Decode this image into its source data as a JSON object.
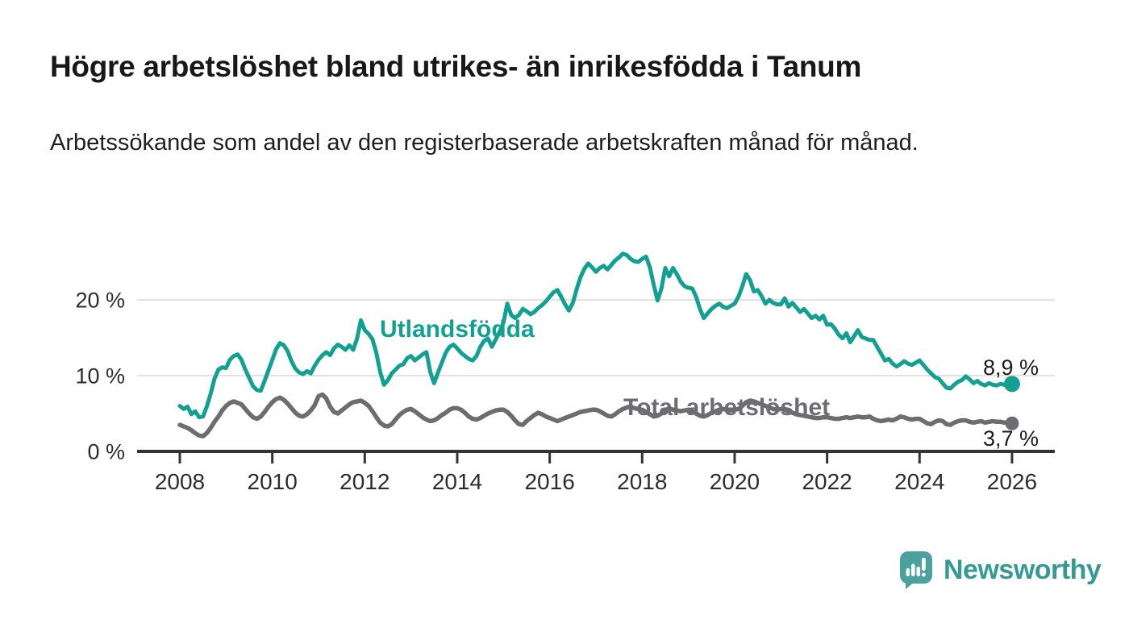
{
  "header": {
    "title": "Högre arbetslöshet bland utrikes- än inrikesfödda i Tanum",
    "subtitle": "Arbetssökande som andel av den registerbaserade arbetskraften månad för månad."
  },
  "branding": {
    "wordmark": "Newsworthy",
    "logo_icon": "newsworthy-speech-bubble-bar-chart-icon",
    "brand_color": "#359A94",
    "icon_color": "#4AA19E"
  },
  "chart_data": {
    "type": "line",
    "frequency": "monthly",
    "x_start_year": 2008,
    "x_end_year": 2026,
    "xlabel": "",
    "ylabel": "",
    "ylim": [
      0,
      27.5
    ],
    "grid": "horizontal",
    "legend_position": "inline-labels",
    "style": {
      "grid_color": "#d9d9d9",
      "axis_color": "#333333",
      "tick_label_color": "#2d2d2d"
    },
    "y_ticks": [
      {
        "value": 0,
        "label": "0 %"
      },
      {
        "value": 10,
        "label": "10 %"
      },
      {
        "value": 20,
        "label": "20 %"
      }
    ],
    "x_ticks": [
      {
        "year": 2008,
        "label": "2008"
      },
      {
        "year": 2010,
        "label": "2010"
      },
      {
        "year": 2012,
        "label": "2012"
      },
      {
        "year": 2014,
        "label": "2014"
      },
      {
        "year": 2016,
        "label": "2016"
      },
      {
        "year": 2018,
        "label": "2018"
      },
      {
        "year": 2020,
        "label": "2020"
      },
      {
        "year": 2022,
        "label": "2022"
      },
      {
        "year": 2024,
        "label": "2024"
      },
      {
        "year": 2026,
        "label": "2026"
      }
    ],
    "series": [
      {
        "id": "utlandsfodda",
        "name": "Utlandsfödda",
        "color": "#12A092",
        "end_label": "8,9 %",
        "end_value": 8.9,
        "values": [
          6.0,
          5.6,
          5.9,
          4.9,
          5.3,
          4.5,
          4.6,
          5.9,
          7.6,
          9.6,
          10.8,
          11.1,
          11.0,
          12.1,
          12.6,
          12.8,
          12.1,
          10.8,
          9.7,
          8.6,
          8.1,
          8.0,
          9.3,
          10.7,
          12.1,
          13.5,
          14.3,
          14.0,
          13.2,
          11.9,
          10.9,
          10.4,
          10.2,
          10.6,
          10.3,
          11.3,
          12.1,
          12.7,
          13.1,
          12.7,
          13.6,
          14.1,
          13.8,
          13.4,
          14.0,
          13.4,
          14.9,
          17.3,
          16.0,
          15.5,
          14.8,
          13.0,
          10.5,
          8.8,
          9.4,
          10.3,
          10.8,
          11.3,
          11.5,
          12.3,
          12.6,
          12.0,
          12.4,
          12.8,
          13.1,
          10.5,
          9.0,
          10.4,
          11.7,
          13.0,
          13.8,
          14.1,
          13.6,
          13.0,
          12.6,
          12.2,
          12.0,
          12.6,
          13.8,
          14.6,
          14.9,
          13.8,
          14.8,
          15.8,
          17.0,
          19.5,
          18.0,
          17.6,
          18.0,
          18.8,
          18.5,
          18.1,
          18.4,
          18.9,
          19.3,
          19.8,
          20.4,
          21.0,
          21.3,
          20.4,
          19.4,
          18.6,
          19.6,
          21.4,
          23.0,
          24.1,
          24.8,
          24.3,
          23.7,
          24.2,
          24.5,
          24.0,
          24.6,
          25.2,
          25.6,
          26.1,
          25.9,
          25.4,
          25.1,
          25.0,
          25.4,
          25.7,
          24.3,
          22.0,
          19.9,
          21.5,
          24.2,
          23.1,
          24.2,
          23.4,
          22.4,
          21.8,
          21.6,
          21.5,
          20.4,
          18.8,
          17.6,
          18.2,
          18.8,
          19.2,
          19.5,
          19.1,
          18.9,
          19.2,
          19.5,
          20.4,
          21.8,
          23.4,
          22.6,
          21.1,
          21.3,
          20.5,
          19.5,
          20.0,
          19.6,
          19.4,
          19.4,
          20.2,
          19.1,
          19.6,
          19.0,
          18.4,
          18.8,
          18.2,
          17.6,
          17.9,
          17.4,
          17.9,
          16.7,
          16.8,
          16.2,
          15.4,
          14.9,
          15.6,
          14.4,
          15.2,
          16.0,
          15.1,
          14.9,
          14.7,
          14.7,
          13.8,
          12.9,
          12.0,
          12.2,
          11.6,
          11.2,
          11.5,
          11.9,
          11.6,
          11.4,
          11.7,
          12.0,
          11.4,
          10.8,
          10.3,
          9.8,
          9.6,
          9.0,
          8.4,
          8.3,
          8.8,
          9.2,
          9.4,
          9.9,
          9.5,
          9.0,
          9.3,
          8.9,
          8.7,
          9.0,
          8.8,
          8.7,
          8.9,
          8.8,
          8.8,
          8.9
        ]
      },
      {
        "id": "total",
        "name": "Total arbetslöshet",
        "color": "#6C6C71",
        "end_label": "3,7 %",
        "end_value": 3.7,
        "values": [
          3.5,
          3.3,
          3.1,
          2.8,
          2.4,
          2.1,
          2.0,
          2.4,
          3.1,
          3.9,
          4.6,
          5.4,
          6.0,
          6.4,
          6.6,
          6.4,
          6.2,
          5.6,
          5.0,
          4.5,
          4.3,
          4.6,
          5.2,
          5.9,
          6.5,
          6.9,
          7.1,
          6.8,
          6.3,
          5.7,
          5.1,
          4.7,
          4.6,
          4.9,
          5.4,
          6.1,
          7.3,
          7.5,
          7.0,
          5.9,
          5.2,
          5.0,
          5.4,
          5.8,
          6.2,
          6.5,
          6.6,
          6.7,
          6.4,
          6.0,
          5.3,
          4.5,
          3.8,
          3.4,
          3.3,
          3.6,
          4.2,
          4.8,
          5.2,
          5.5,
          5.6,
          5.3,
          4.9,
          4.5,
          4.2,
          4.0,
          4.1,
          4.4,
          4.8,
          5.1,
          5.5,
          5.7,
          5.7,
          5.5,
          5.1,
          4.6,
          4.3,
          4.2,
          4.4,
          4.7,
          5.0,
          5.2,
          5.4,
          5.5,
          5.5,
          5.2,
          4.7,
          4.1,
          3.6,
          3.5,
          4.0,
          4.4,
          4.8,
          5.1,
          4.9,
          4.6,
          4.4,
          4.2,
          4.0,
          4.2,
          4.4,
          4.6,
          4.8,
          5.0,
          5.2,
          5.3,
          5.4,
          5.5,
          5.5,
          5.3,
          5.0,
          4.7,
          4.6,
          4.9,
          5.3,
          5.6,
          5.8,
          5.9,
          5.7,
          5.6,
          5.5,
          5.2,
          4.9,
          4.6,
          4.7,
          5.0,
          5.4,
          5.7,
          5.5,
          5.4,
          5.3,
          5.4,
          5.5,
          5.3,
          5.0,
          4.7,
          4.6,
          4.8,
          5.1,
          5.3,
          5.5,
          5.6,
          5.5,
          5.4,
          5.5,
          5.6,
          6.0,
          6.5,
          6.7,
          6.6,
          6.4,
          6.2,
          6.0,
          5.8,
          5.6,
          5.5,
          5.6,
          5.5,
          5.3,
          5.1,
          4.9,
          4.8,
          4.7,
          4.6,
          4.5,
          4.4,
          4.4,
          4.5,
          4.5,
          4.4,
          4.3,
          4.3,
          4.4,
          4.5,
          4.4,
          4.5,
          4.6,
          4.5,
          4.5,
          4.6,
          4.3,
          4.1,
          4.0,
          4.1,
          4.2,
          4.1,
          4.3,
          4.6,
          4.5,
          4.3,
          4.2,
          4.3,
          4.3,
          4.0,
          3.7,
          3.6,
          3.9,
          4.1,
          4.0,
          3.6,
          3.5,
          3.8,
          4.0,
          4.1,
          4.1,
          3.9,
          3.8,
          3.9,
          4.0,
          3.8,
          3.9,
          4.0,
          3.9,
          3.9,
          3.8,
          3.8,
          3.7
        ]
      }
    ]
  }
}
